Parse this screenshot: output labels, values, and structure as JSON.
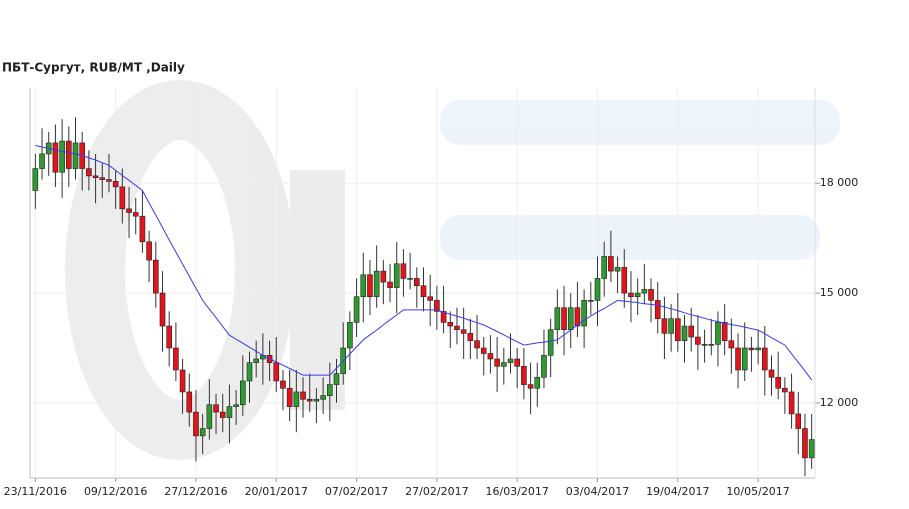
{
  "chart_data": {
    "type": "candlestick",
    "title": "ПБТ-Сургут,  RUB/MT ,Daily",
    "categories": [
      "23/11/2016",
      null,
      null,
      null,
      null,
      null,
      null,
      null,
      null,
      null,
      null,
      null,
      "09/12/2016",
      null,
      null,
      null,
      null,
      null,
      null,
      null,
      null,
      null,
      null,
      null,
      "27/12/2016",
      null,
      null,
      null,
      null,
      null,
      null,
      null,
      null,
      null,
      null,
      null,
      "20/01/2017",
      null,
      null,
      null,
      null,
      null,
      null,
      null,
      null,
      null,
      null,
      null,
      "07/02/2017",
      null,
      null,
      null,
      null,
      null,
      null,
      null,
      null,
      null,
      null,
      null,
      "27/02/2017",
      null,
      null,
      null,
      null,
      null,
      null,
      null,
      null,
      null,
      null,
      null,
      "16/03/2017",
      null,
      null,
      null,
      null,
      null,
      null,
      null,
      null,
      null,
      null,
      null,
      "03/04/2017",
      null,
      null,
      null,
      null,
      null,
      null,
      null,
      null,
      null,
      null,
      null,
      "19/04/2017",
      null,
      null,
      null,
      null,
      null,
      null,
      null,
      null,
      null,
      null,
      null,
      "10/05/2017",
      null,
      null,
      null,
      null,
      null,
      null,
      null,
      null
    ],
    "open": [
      17800,
      18400,
      18800,
      19100,
      18300,
      19150,
      18400,
      19100,
      18400,
      18200,
      18150,
      18100,
      18050,
      17900,
      17300,
      17200,
      17100,
      16400,
      15900,
      15000,
      14100,
      13500,
      12900,
      12300,
      11750,
      11100,
      11300,
      11950,
      11750,
      11600,
      11900,
      11950,
      12600,
      13100,
      13200,
      13300,
      13100,
      12600,
      12400,
      11900,
      12300,
      12100,
      12050,
      12100,
      12200,
      12500,
      12800,
      13500,
      14200,
      14900,
      15500,
      14900,
      15600,
      15300,
      15150,
      15800,
      15400,
      15400,
      15200,
      14900,
      14800,
      14500,
      14200,
      14100,
      14000,
      13900,
      13700,
      13500,
      13350,
      13200,
      13000,
      13100,
      13200,
      13000,
      12500,
      12400,
      12700,
      13300,
      14000,
      14600,
      14000,
      14600,
      14100,
      14800,
      14800,
      15400,
      16000,
      15600,
      15700,
      15000,
      14900,
      15000,
      15100,
      14800,
      14300,
      13900,
      14300,
      13700,
      14100,
      13800,
      13600,
      13600,
      13600,
      14200,
      13700,
      13500,
      12900,
      13500,
      13450,
      13500,
      12900,
      12700,
      12400,
      12300,
      11700,
      11300,
      10500
    ],
    "high": [
      18800,
      19500,
      19400,
      19600,
      19750,
      19550,
      19800,
      19400,
      18900,
      18800,
      18550,
      18800,
      18350,
      18400,
      17900,
      17600,
      17800,
      16700,
      16400,
      15600,
      14500,
      14200,
      13200,
      12800,
      12350,
      11700,
      12650,
      12250,
      12250,
      12500,
      12350,
      13300,
      13400,
      13700,
      13900,
      13700,
      13800,
      12900,
      12900,
      12900,
      12700,
      12800,
      12400,
      12700,
      13100,
      13200,
      14200,
      14500,
      15400,
      16100,
      15900,
      16300,
      15900,
      15800,
      16400,
      16200,
      16100,
      15700,
      15700,
      15500,
      15200,
      15200,
      14500,
      14600,
      14600,
      14300,
      14400,
      13800,
      13850,
      13800,
      13500,
      13900,
      13500,
      13500,
      13100,
      13100,
      14000,
      14300,
      15100,
      15200,
      15000,
      15300,
      15100,
      15300,
      16000,
      16400,
      16700,
      16000,
      16200,
      15600,
      15400,
      15800,
      15400,
      15300,
      14900,
      14700,
      15000,
      14400,
      14600,
      14400,
      14000,
      14300,
      14500,
      14700,
      14300,
      13900,
      14200,
      13800,
      14000,
      14100,
      13300,
      13400,
      12700,
      12800,
      12300,
      11700,
      11700
    ],
    "low": [
      17300,
      18100,
      18200,
      17900,
      17600,
      17900,
      18100,
      17800,
      17800,
      17450,
      17600,
      17750,
      17300,
      16900,
      16500,
      16600,
      16100,
      15300,
      14600,
      13400,
      13000,
      12600,
      11700,
      11350,
      10400,
      10600,
      11000,
      11150,
      11200,
      10900,
      11400,
      11650,
      12000,
      12700,
      12500,
      12600,
      12300,
      11800,
      11500,
      11200,
      11600,
      11750,
      11450,
      11700,
      11500,
      12000,
      12500,
      12900,
      13800,
      14200,
      14400,
      14600,
      14700,
      14750,
      14450,
      14900,
      15100,
      14600,
      14500,
      14100,
      14000,
      13900,
      13500,
      13600,
      13200,
      13200,
      13200,
      12750,
      12800,
      12300,
      12500,
      12800,
      12400,
      12100,
      11700,
      11900,
      12400,
      12700,
      13600,
      13300,
      13500,
      13800,
      13500,
      14400,
      14100,
      14900,
      15300,
      15000,
      14600,
      14200,
      14400,
      14700,
      14200,
      13900,
      13200,
      13400,
      13400,
      13100,
      13400,
      12900,
      13100,
      13300,
      13000,
      13300,
      12800,
      12400,
      12600,
      12850,
      13050,
      12200,
      12200,
      12100,
      11700,
      11300,
      10600,
      10000,
      10200
    ],
    "close": [
      18400,
      18800,
      19100,
      18300,
      19150,
      18400,
      19100,
      18400,
      18200,
      18150,
      18100,
      18050,
      17900,
      17300,
      17200,
      17100,
      16400,
      15900,
      15000,
      14100,
      13500,
      12900,
      12300,
      11750,
      11100,
      11300,
      11950,
      11750,
      11600,
      11900,
      11950,
      12600,
      13100,
      13200,
      13300,
      13100,
      12600,
      12400,
      11900,
      12300,
      12100,
      12050,
      12100,
      12200,
      12500,
      12800,
      13500,
      14200,
      14900,
      15500,
      14900,
      15600,
      15300,
      15150,
      15800,
      15400,
      15400,
      15200,
      14900,
      14800,
      14500,
      14200,
      14100,
      14000,
      13900,
      13700,
      13500,
      13350,
      13200,
      13000,
      13100,
      13200,
      13000,
      12500,
      12400,
      12700,
      13300,
      14000,
      14600,
      14000,
      14600,
      14100,
      14800,
      14800,
      15400,
      16000,
      15600,
      15700,
      15000,
      14900,
      15000,
      15100,
      14800,
      14300,
      13900,
      14300,
      13700,
      14100,
      13800,
      13600,
      13600,
      13600,
      14200,
      13700,
      13500,
      12900,
      13500,
      13450,
      13500,
      12900,
      12700,
      12400,
      12300,
      11700,
      11300,
      10500,
      11000
    ],
    "moving_average": {
      "color": "#3a3aee",
      "values": [
        19030,
        18990,
        18950,
        18910,
        18870,
        18840,
        18800,
        18760,
        18690,
        18630,
        18560,
        18490,
        18350,
        18210,
        18080,
        17940,
        17800,
        17460,
        17130,
        16790,
        16450,
        16120,
        15790,
        15460,
        15130,
        14800,
        14560,
        14330,
        14090,
        13850,
        13740,
        13630,
        13520,
        13410,
        13300,
        13210,
        13120,
        13030,
        12940,
        12850,
        12760,
        12760,
        12760,
        12760,
        12760,
        12950,
        13140,
        13340,
        13530,
        13720,
        13860,
        13990,
        14130,
        14270,
        14400,
        14540,
        14540,
        14540,
        14540,
        14540,
        14540,
        14480,
        14420,
        14370,
        14310,
        14250,
        14190,
        14130,
        14040,
        13950,
        13860,
        13760,
        13670,
        13580,
        13610,
        13640,
        13660,
        13690,
        13720,
        13860,
        13990,
        14130,
        14260,
        14370,
        14480,
        14580,
        14690,
        14800,
        14780,
        14760,
        14740,
        14710,
        14690,
        14670,
        14620,
        14570,
        14520,
        14460,
        14410,
        14360,
        14310,
        14260,
        14220,
        14180,
        14140,
        14110,
        14070,
        14030,
        13990,
        13890,
        13780,
        13680,
        13580,
        13340,
        13110,
        12870,
        12630
      ]
    },
    "up_color": "#2f9a2f",
    "down_color": "#e3141c",
    "ylim": [
      9950,
      20600
    ],
    "yticks": [
      {
        "value": 12000,
        "label": "12 000"
      },
      {
        "value": 15000,
        "label": "15 000"
      },
      {
        "value": 18000,
        "label": "18 000"
      }
    ],
    "y_axis_side": "right",
    "grid": true
  }
}
